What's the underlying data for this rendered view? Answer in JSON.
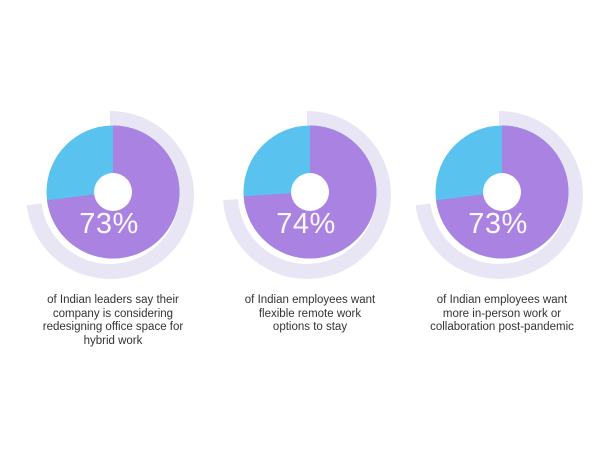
{
  "page": {
    "background_color": "#ffffff"
  },
  "chart_data": {
    "type": "pie",
    "subtype": "donut-trio-infographic",
    "title": "",
    "legend": "none",
    "start_angle_deg": 0,
    "direction": "clockwise",
    "unit": "%",
    "colors": {
      "primary_slice": "#aa82e1",
      "secondary_slice": "#5ac2ee",
      "track_ring": "#e8e5f4",
      "hole": "#ffffff",
      "label_text": "#ffffff",
      "caption_text": "#333333"
    },
    "charts": [
      {
        "label": "73%",
        "percent": 73,
        "remainder": 27,
        "values": [
          73,
          27
        ],
        "caption": "of Indian leaders say their\ncompany is considering\nredesigning office space for\nhybrid work"
      },
      {
        "label": "74%",
        "percent": 74,
        "remainder": 26,
        "values": [
          74,
          26
        ],
        "caption": "of Indian employees want\nflexible remote work\noptions to stay"
      },
      {
        "label": "73%",
        "percent": 73,
        "remainder": 27,
        "values": [
          73,
          27
        ],
        "caption": "of Indian employees want\nmore in-person work or\ncollaboration post-pandemic"
      }
    ]
  }
}
